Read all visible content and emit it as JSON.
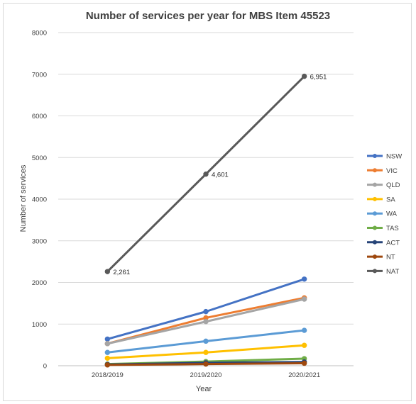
{
  "chart_data": {
    "type": "line",
    "title": "Number of services per year for MBS Item 45523",
    "xlabel": "Year",
    "ylabel": "Number of services",
    "categories": [
      "2018/2019",
      "2019/2020",
      "2020/2021"
    ],
    "ylim": [
      0,
      8000
    ],
    "yticks": [
      0,
      1000,
      2000,
      3000,
      4000,
      5000,
      6000,
      7000,
      8000
    ],
    "grid": true,
    "legend_position": "right",
    "series": [
      {
        "name": "NSW",
        "values": [
          640,
          1300,
          2080
        ],
        "color": "#4472c4"
      },
      {
        "name": "VIC",
        "values": [
          530,
          1150,
          1630
        ],
        "color": "#ed7d31"
      },
      {
        "name": "QLD",
        "values": [
          530,
          1060,
          1600
        ],
        "color": "#a5a5a5"
      },
      {
        "name": "SA",
        "values": [
          180,
          320,
          490
        ],
        "color": "#ffc000"
      },
      {
        "name": "WA",
        "values": [
          320,
          590,
          850
        ],
        "color": "#5b9bd5"
      },
      {
        "name": "TAS",
        "values": [
          40,
          100,
          170
        ],
        "color": "#70ad47"
      },
      {
        "name": "ACT",
        "values": [
          30,
          70,
          90
        ],
        "color": "#264478"
      },
      {
        "name": "NT",
        "values": [
          20,
          40,
          60
        ],
        "color": "#9e480e"
      },
      {
        "name": "NAT",
        "values": [
          2261,
          4601,
          6951
        ],
        "color": "#595959"
      }
    ],
    "data_labels": {
      "series": "NAT",
      "labels": [
        "2,261",
        "4,601",
        "6,951"
      ]
    }
  }
}
